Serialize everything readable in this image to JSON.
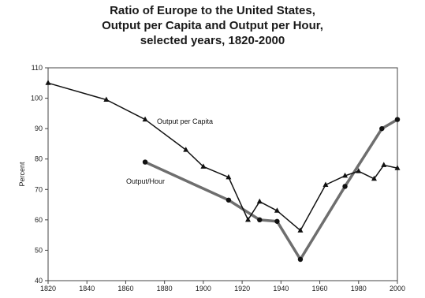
{
  "chart_data": {
    "type": "line",
    "title_lines": [
      "Ratio of Europe to the United States,",
      "Output per Capita and Output per Hour,",
      "selected years, 1820-2000"
    ],
    "xlabel": "",
    "ylabel": "Percent",
    "xlim": [
      1820,
      2000
    ],
    "ylim": [
      40,
      110
    ],
    "xticks": [
      1820,
      1840,
      1860,
      1880,
      1900,
      1920,
      1940,
      1960,
      1980,
      2000
    ],
    "yticks": [
      40,
      50,
      60,
      70,
      80,
      90,
      100,
      110
    ],
    "grid": false,
    "legend": "none",
    "series": [
      {
        "name": "Output per Capita",
        "color": "#111111",
        "marker": "triangle",
        "x": [
          1820,
          1850,
          1870,
          1891,
          1900,
          1913,
          1923,
          1929,
          1938,
          1950,
          1963,
          1973,
          1980,
          1988,
          1993,
          2000
        ],
        "y": [
          105,
          99.5,
          93,
          83,
          77.5,
          74,
          60,
          66,
          63,
          56.5,
          71.5,
          74.5,
          76,
          73.5,
          78,
          77
        ]
      },
      {
        "name": "Output/Hour",
        "color": "#6e6e6e",
        "marker": "circle",
        "x": [
          1870,
          1913,
          1929,
          1938,
          1950,
          1973,
          1992,
          2000
        ],
        "y": [
          79,
          66.5,
          60,
          59.5,
          47,
          71,
          90,
          93
        ]
      }
    ]
  }
}
